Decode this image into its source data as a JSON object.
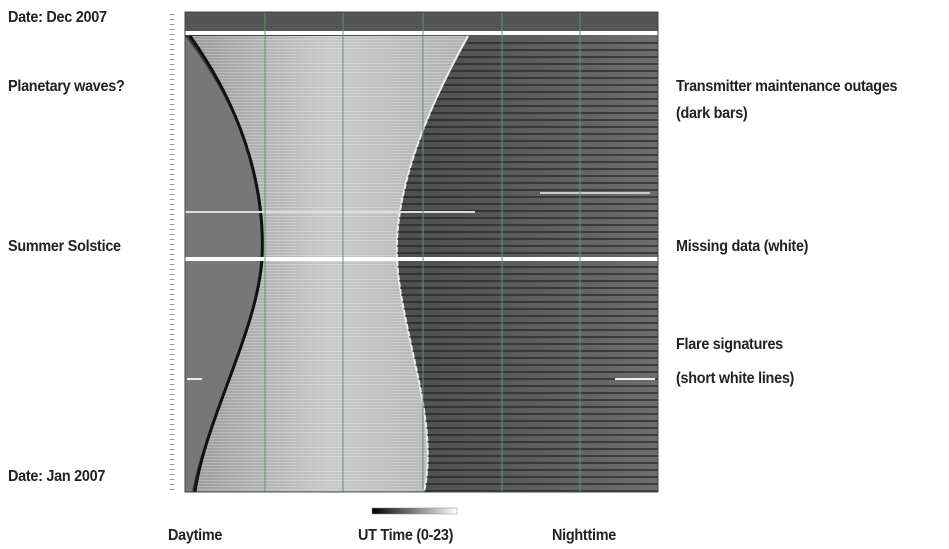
{
  "left_labels": [
    "Date: Dec 2007",
    "Planetary waves?",
    "Summer Solstice",
    "Date: Jan 2007"
  ],
  "right_labels": [
    "Transmitter maintenance outages",
    "(dark bars)",
    "Missing data (white)",
    "Flare signatures",
    "(short white lines)"
  ],
  "bottom_labels": [
    "Daytime",
    "UT Time (0-23)",
    "Nighttime"
  ]
}
